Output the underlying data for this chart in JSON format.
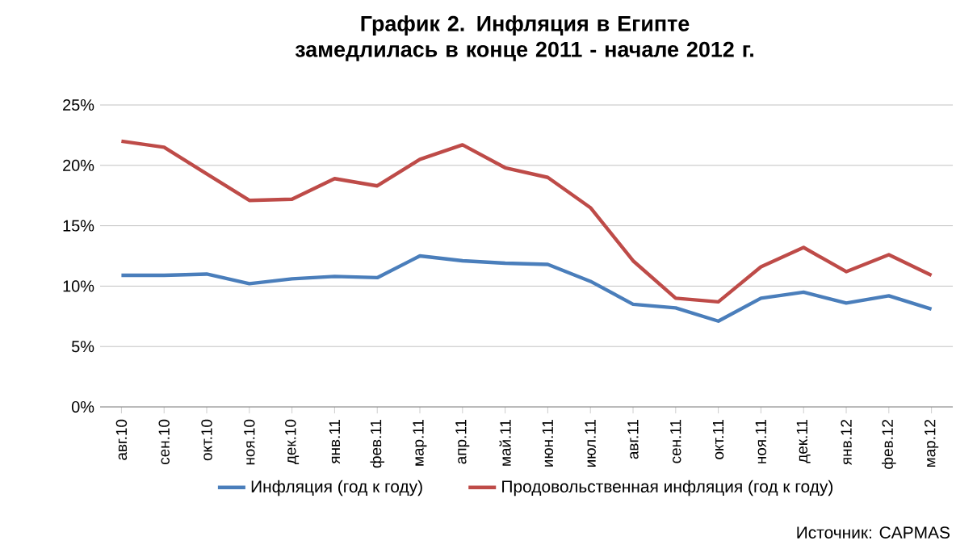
{
  "chart_data": {
    "type": "line",
    "title": "График 2. Инфляция в Египте замедлилась в конце 2011 - начале 2012 г.",
    "categories": [
      "авг.10",
      "сен.10",
      "окт.10",
      "ноя.10",
      "дек.10",
      "янв.11",
      "фев.11",
      "мар.11",
      "апр.11",
      "май.11",
      "июн.11",
      "июл.11",
      "авг.11",
      "сен.11",
      "окт.11",
      "ноя.11",
      "дек.11",
      "янв.12",
      "фев.12",
      "мар.12"
    ],
    "series": [
      {
        "name": "Инфляция (год к году)",
        "color": "#4a7ebb",
        "values": [
          10.9,
          10.9,
          11.0,
          10.2,
          10.6,
          10.8,
          10.7,
          12.5,
          12.1,
          11.9,
          11.8,
          10.4,
          8.5,
          8.2,
          7.1,
          9.0,
          9.5,
          8.6,
          9.2,
          8.1
        ]
      },
      {
        "name": "Продовольственная инфляция (год к году)",
        "color": "#be4b48",
        "values": [
          22.0,
          21.5,
          19.3,
          17.1,
          17.2,
          18.9,
          18.3,
          20.5,
          21.7,
          19.8,
          19.0,
          16.5,
          12.1,
          9.0,
          8.7,
          11.6,
          13.2,
          11.2,
          12.6,
          10.9
        ]
      }
    ],
    "ylim": [
      0,
      25
    ],
    "yticks": [
      {
        "value": 0,
        "label": "0%"
      },
      {
        "value": 5,
        "label": "5%"
      },
      {
        "value": 10,
        "label": "10%"
      },
      {
        "value": 15,
        "label": "15%"
      },
      {
        "value": 20,
        "label": "20%"
      },
      {
        "value": 25,
        "label": "25%"
      }
    ],
    "grid": "y",
    "legend": "bottom",
    "marker": "none",
    "line_style": "solid",
    "annotations": [
      "Источник: CAPMAS"
    ]
  }
}
